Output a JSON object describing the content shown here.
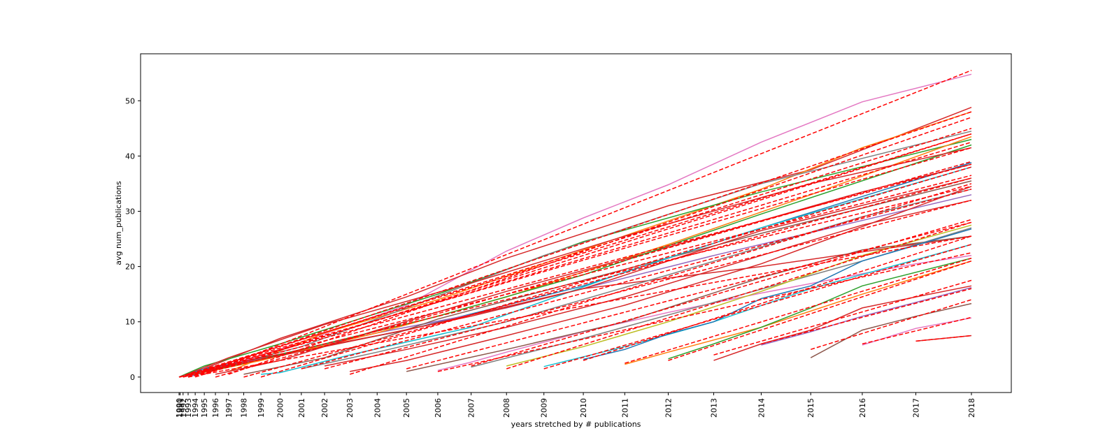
{
  "chart_data": {
    "type": "line",
    "xlabel": "years stretched by # publications",
    "ylabel": "avg num_publications",
    "title": "",
    "grid": false,
    "ylim": [
      -2.8,
      58.5
    ],
    "x_ticks": [
      "1990",
      "1991",
      "1992",
      "1993",
      "1994",
      "1995",
      "1996",
      "1997",
      "1998",
      "1999",
      "2000",
      "2001",
      "2002",
      "2003",
      "2004",
      "2005",
      "2006",
      "2007",
      "2008",
      "2009",
      "2010",
      "2011",
      "2012",
      "2013",
      "2014",
      "2015",
      "2016",
      "2017",
      "2018"
    ],
    "y_ticks": [
      0,
      10,
      20,
      30,
      40,
      50
    ],
    "colors": {
      "fit": "#ff0000",
      "palette": [
        "#1f77b4",
        "#ff7f0e",
        "#2ca02c",
        "#d62728",
        "#9467bd",
        "#8c564b",
        "#e377c2",
        "#7f7f7f",
        "#bcbd22",
        "#17becf"
      ]
    },
    "series": [
      {
        "color_index": 6,
        "x": [
          2006,
          2007,
          2008,
          2010,
          2012,
          2014,
          2016,
          2017,
          2018
        ],
        "y": [
          1.2,
          2.7,
          4.5,
          8.2,
          11.7,
          15.2,
          18.7,
          20.5,
          22.0
        ],
        "fit": [
          1.0,
          22.5
        ]
      },
      {
        "color_index": 6,
        "x": [
          1995,
          2000,
          2005,
          2008,
          2010,
          2012,
          2014,
          2016,
          2018
        ],
        "y": [
          0.8,
          5.0,
          13.0,
          22.8,
          28.8,
          34.8,
          42.5,
          49.8,
          54.8
        ],
        "fit": [
          0.5,
          55.5
        ]
      },
      {
        "color_index": 3,
        "x": [
          1995,
          2000,
          2005,
          2008,
          2012,
          2015,
          2018
        ],
        "y": [
          1.5,
          7.0,
          14.5,
          21.5,
          31.0,
          37.5,
          48.8
        ],
        "fit": [
          1.0,
          48.0
        ]
      },
      {
        "color_index": 1,
        "x": [
          1997,
          2002,
          2006,
          2010,
          2014,
          2016,
          2018
        ],
        "y": [
          1.0,
          8.0,
          14.0,
          23.0,
          34.0,
          41.5,
          48.0
        ],
        "fit": [
          0.5,
          47.0
        ]
      },
      {
        "color_index": 2,
        "x": [
          1990,
          1995,
          2000,
          2006,
          2010,
          2014,
          2018
        ],
        "y": [
          0.0,
          2.0,
          6.0,
          15.0,
          24.5,
          33.5,
          43.0
        ],
        "fit": [
          0.0,
          44.0
        ]
      },
      {
        "color_index": 7,
        "x": [
          1992,
          1996,
          2001,
          2005,
          2009,
          2014,
          2018
        ],
        "y": [
          0.0,
          1.5,
          5.5,
          12.5,
          22.0,
          35.0,
          44.5
        ],
        "fit": [
          0.0,
          45.0
        ]
      },
      {
        "color_index": 0,
        "x": [
          1990,
          1995,
          2000,
          2005,
          2010,
          2014,
          2018
        ],
        "y": [
          0.0,
          1.5,
          4.0,
          8.5,
          16.5,
          27.0,
          38.8
        ],
        "fit": [
          0.0,
          38.5
        ]
      },
      {
        "color_index": 4,
        "x": [
          1993,
          1997,
          2001,
          2004,
          2008,
          2013,
          2018
        ],
        "y": [
          0.0,
          2.0,
          5.0,
          8.0,
          12.5,
          22.0,
          33.0
        ],
        "fit": [
          0.0,
          34.5
        ]
      },
      {
        "color_index": 5,
        "x": [
          1998,
          2002,
          2006,
          2010,
          2014,
          2018
        ],
        "y": [
          0.5,
          3.5,
          10.5,
          17.5,
          26.0,
          35.5
        ],
        "fit": [
          0.0,
          36.0
        ]
      },
      {
        "color_index": 3,
        "x": [
          1993,
          1999,
          2005,
          2010,
          2014,
          2018
        ],
        "y": [
          0.5,
          3.5,
          8.5,
          16.0,
          20.0,
          25.5
        ],
        "fit": [
          0.0,
          25.5
        ]
      },
      {
        "color_index": 9,
        "x": [
          1999,
          2000,
          2003,
          2007,
          2011,
          2014,
          2018
        ],
        "y": [
          0.5,
          0.8,
          4.0,
          9.0,
          19.0,
          27.0,
          38.0
        ],
        "fit": [
          0.0,
          38.0
        ]
      },
      {
        "color_index": 3,
        "x": [
          2003,
          2005,
          2008,
          2011,
          2014,
          2018
        ],
        "y": [
          1.0,
          3.0,
          7.5,
          13.0,
          20.5,
          34.5
        ],
        "fit": [
          0.5,
          35.0
        ]
      },
      {
        "color_index": 5,
        "x": [
          2005,
          2008,
          2011,
          2014,
          2016,
          2018
        ],
        "y": [
          1.0,
          5.0,
          10.0,
          18.0,
          23.0,
          25.5
        ],
        "fit": [
          1.5,
          28.0
        ]
      },
      {
        "color_index": 7,
        "x": [
          2007,
          2010,
          2013,
          2016,
          2018
        ],
        "y": [
          1.8,
          7.0,
          13.5,
          21.0,
          27.0
        ],
        "fit": [
          2.0,
          28.5
        ]
      },
      {
        "color_index": 8,
        "x": [
          2008,
          2010,
          2012,
          2014,
          2016,
          2018
        ],
        "y": [
          2.0,
          5.5,
          10.0,
          15.5,
          22.0,
          27.5
        ],
        "fit": [
          1.5,
          28.0
        ]
      },
      {
        "color_index": 9,
        "x": [
          2009,
          2011,
          2013,
          2015,
          2018
        ],
        "y": [
          1.9,
          5.5,
          10.0,
          16.0,
          24.0
        ],
        "fit": [
          1.5,
          24.0
        ]
      },
      {
        "color_index": 0,
        "x": [
          2010,
          2011,
          2012,
          2013,
          2014,
          2015,
          2016,
          2018
        ],
        "y": [
          3.2,
          5.0,
          7.8,
          10.0,
          14.2,
          16.5,
          21.0,
          26.8
        ],
        "fit": [
          3.0,
          25.5
        ]
      },
      {
        "color_index": 1,
        "x": [
          2011,
          2012,
          2014,
          2016,
          2018
        ],
        "y": [
          2.3,
          4.5,
          9.0,
          15.0,
          21.0
        ],
        "fit": [
          2.5,
          21.5
        ]
      },
      {
        "color_index": 2,
        "x": [
          2012,
          2013,
          2014,
          2015,
          2016,
          2018
        ],
        "y": [
          3.3,
          6.0,
          9.0,
          12.5,
          16.5,
          21.5
        ],
        "fit": [
          3.0,
          21.0
        ]
      },
      {
        "color_index": 3,
        "x": [
          2013,
          2014,
          2015,
          2016,
          2017,
          2018
        ],
        "y": [
          3.0,
          6.0,
          8.5,
          12.5,
          14.5,
          16.5
        ],
        "fit": [
          4.0,
          17.5
        ]
      },
      {
        "color_index": 4,
        "x": [
          2014,
          2015,
          2016,
          2017,
          2018
        ],
        "y": [
          5.8,
          8.2,
          11.0,
          13.5,
          16.2
        ],
        "fit": [
          6.0,
          16.0
        ]
      },
      {
        "color_index": 5,
        "x": [
          2015,
          2016,
          2017,
          2018
        ],
        "y": [
          3.5,
          8.5,
          11.0,
          13.3
        ],
        "fit": [
          5.0,
          14.0
        ]
      },
      {
        "color_index": 6,
        "x": [
          2016,
          2017,
          2018
        ],
        "y": [
          5.8,
          8.8,
          10.7
        ],
        "fit": [
          6.0,
          10.8
        ]
      },
      {
        "color_index": 3,
        "x": [
          2017,
          2018
        ],
        "y": [
          6.5,
          7.5
        ],
        "fit": [
          6.5,
          7.5
        ]
      },
      {
        "color_index": 1,
        "x": [
          1994,
          1999,
          2004,
          2008,
          2012,
          2015,
          2018
        ],
        "y": [
          0.5,
          3.0,
          8.0,
          14.5,
          24.0,
          33.0,
          43.5
        ],
        "fit": [
          0.0,
          44.0
        ]
      },
      {
        "color_index": 3,
        "x": [
          1996,
          2000,
          2004,
          2008,
          2012,
          2016,
          2018
        ],
        "y": [
          0.5,
          3.0,
          8.5,
          15.5,
          23.5,
          33.5,
          38.5
        ],
        "fit": [
          0.0,
          39.0
        ]
      },
      {
        "color_index": 2,
        "x": [
          1993,
          1998,
          2002,
          2006,
          2010,
          2014,
          2018
        ],
        "y": [
          0.3,
          2.5,
          6.0,
          11.0,
          18.5,
          29.5,
          42.0
        ],
        "fit": [
          0.0,
          42.5
        ]
      },
      {
        "color_index": 3,
        "x": [
          1991,
          1997,
          2002,
          2007,
          2011,
          2015,
          2018
        ],
        "y": [
          0.0,
          3.5,
          9.5,
          17.0,
          25.5,
          35.0,
          41.5
        ],
        "fit": [
          0.0,
          41.5
        ]
      },
      {
        "color_index": 3,
        "x": [
          1992,
          1997,
          2002,
          2007,
          2010,
          2014,
          2018
        ],
        "y": [
          0.0,
          2.0,
          5.5,
          11.0,
          16.0,
          26.5,
          36.0
        ],
        "fit": [
          0.0,
          36.5
        ]
      },
      {
        "color_index": 7,
        "x": [
          2001,
          2004,
          2008,
          2012,
          2016,
          2018
        ],
        "y": [
          1.5,
          4.5,
          10.0,
          18.5,
          29.0,
          34.0
        ],
        "fit": [
          1.5,
          34.0
        ]
      },
      {
        "color_index": 3,
        "x": [
          2002,
          2005,
          2008,
          2011,
          2014,
          2016,
          2018
        ],
        "y": [
          2.0,
          5.0,
          9.0,
          14.5,
          22.0,
          27.5,
          32.0
        ],
        "fit": [
          1.5,
          32.0
        ]
      }
    ]
  }
}
